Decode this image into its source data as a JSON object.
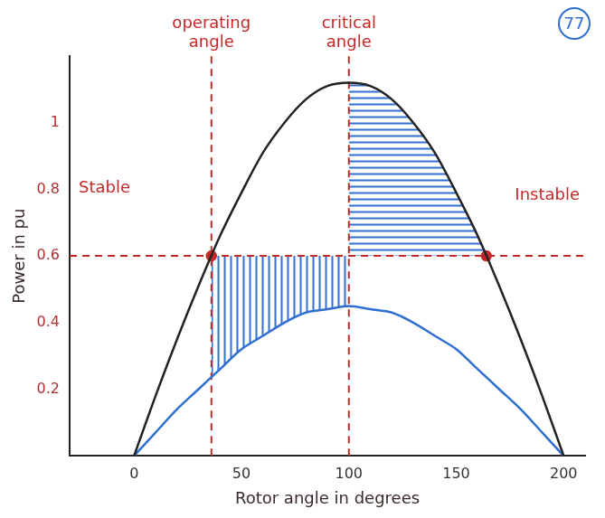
{
  "chart_data": {
    "type": "line",
    "x_label": "Rotor angle in degrees",
    "y_label": "Power in pu",
    "xlim": [
      -30,
      210
    ],
    "xticks": [
      0,
      50,
      100,
      150,
      200
    ],
    "ylim": [
      0,
      1.2
    ],
    "yticks": [
      0.2,
      0.4,
      0.6,
      0.8,
      1
    ],
    "grid": false,
    "series": [
      {
        "color": "#222222",
        "line_style": "solid",
        "marker": "none",
        "x": [
          0,
          10,
          20,
          30,
          40,
          50,
          60,
          70,
          80,
          90,
          100,
          110,
          120,
          130,
          140,
          150,
          160,
          170,
          180,
          190,
          200
        ],
        "values": [
          0,
          0.18,
          0.35,
          0.51,
          0.66,
          0.79,
          0.91,
          1.0,
          1.07,
          1.11,
          1.12,
          1.11,
          1.07,
          1.0,
          0.91,
          0.79,
          0.66,
          0.51,
          0.35,
          0.18,
          0
        ]
      },
      {
        "color": "#2f6fd0",
        "line_style": "solid",
        "marker": "none",
        "x": [
          0,
          10,
          20,
          30,
          40,
          50,
          60,
          70,
          80,
          90,
          100,
          110,
          120,
          130,
          140,
          150,
          160,
          170,
          180,
          190,
          200
        ],
        "values": [
          0,
          0.07,
          0.14,
          0.2,
          0.26,
          0.32,
          0.36,
          0.4,
          0.43,
          0.44,
          0.45,
          0.44,
          0.43,
          0.4,
          0.36,
          0.32,
          0.26,
          0.2,
          0.14,
          0.07,
          0
        ]
      },
      {
        "color": "#c62828",
        "line_style": "dashed",
        "marker": "none",
        "x": [
          -30,
          210
        ],
        "values": [
          0.6,
          0.6
        ]
      },
      {
        "color": "#c62828",
        "line_style": "dashed",
        "marker": "none",
        "x": [
          36,
          36
        ],
        "values": [
          0,
          1.2
        ]
      },
      {
        "color": "#c62828",
        "line_style": "dashed",
        "marker": "none",
        "x": [
          100,
          100
        ],
        "values": [
          0,
          1.2
        ]
      },
      {
        "color": "#c62828",
        "line_style": "none",
        "marker": "circle",
        "x": [
          36,
          164
        ],
        "values": [
          0.6,
          0.6
        ]
      }
    ],
    "areas": [
      {
        "color": "#2f6fd0",
        "x": [
          36,
          40,
          50,
          60,
          70,
          80,
          90,
          100
        ],
        "lower": [
          0.24,
          0.26,
          0.32,
          0.36,
          0.4,
          0.43,
          0.44,
          0.45
        ],
        "upper": [
          0.6,
          0.6,
          0.6,
          0.6,
          0.6,
          0.6,
          0.6,
          0.6
        ]
      },
      {
        "color": "#2f6fd0",
        "x": [
          100,
          110,
          120,
          130,
          140,
          150,
          160,
          164
        ],
        "lower": [
          0.6,
          0.6,
          0.6,
          0.6,
          0.6,
          0.6,
          0.6,
          0.6
        ],
        "upper": [
          1.12,
          1.11,
          1.07,
          1.0,
          0.91,
          0.79,
          0.66,
          0.6
        ]
      }
    ],
    "annotations": [
      "operating angle",
      "critical angle",
      "Stable",
      "Instable",
      "77"
    ]
  }
}
